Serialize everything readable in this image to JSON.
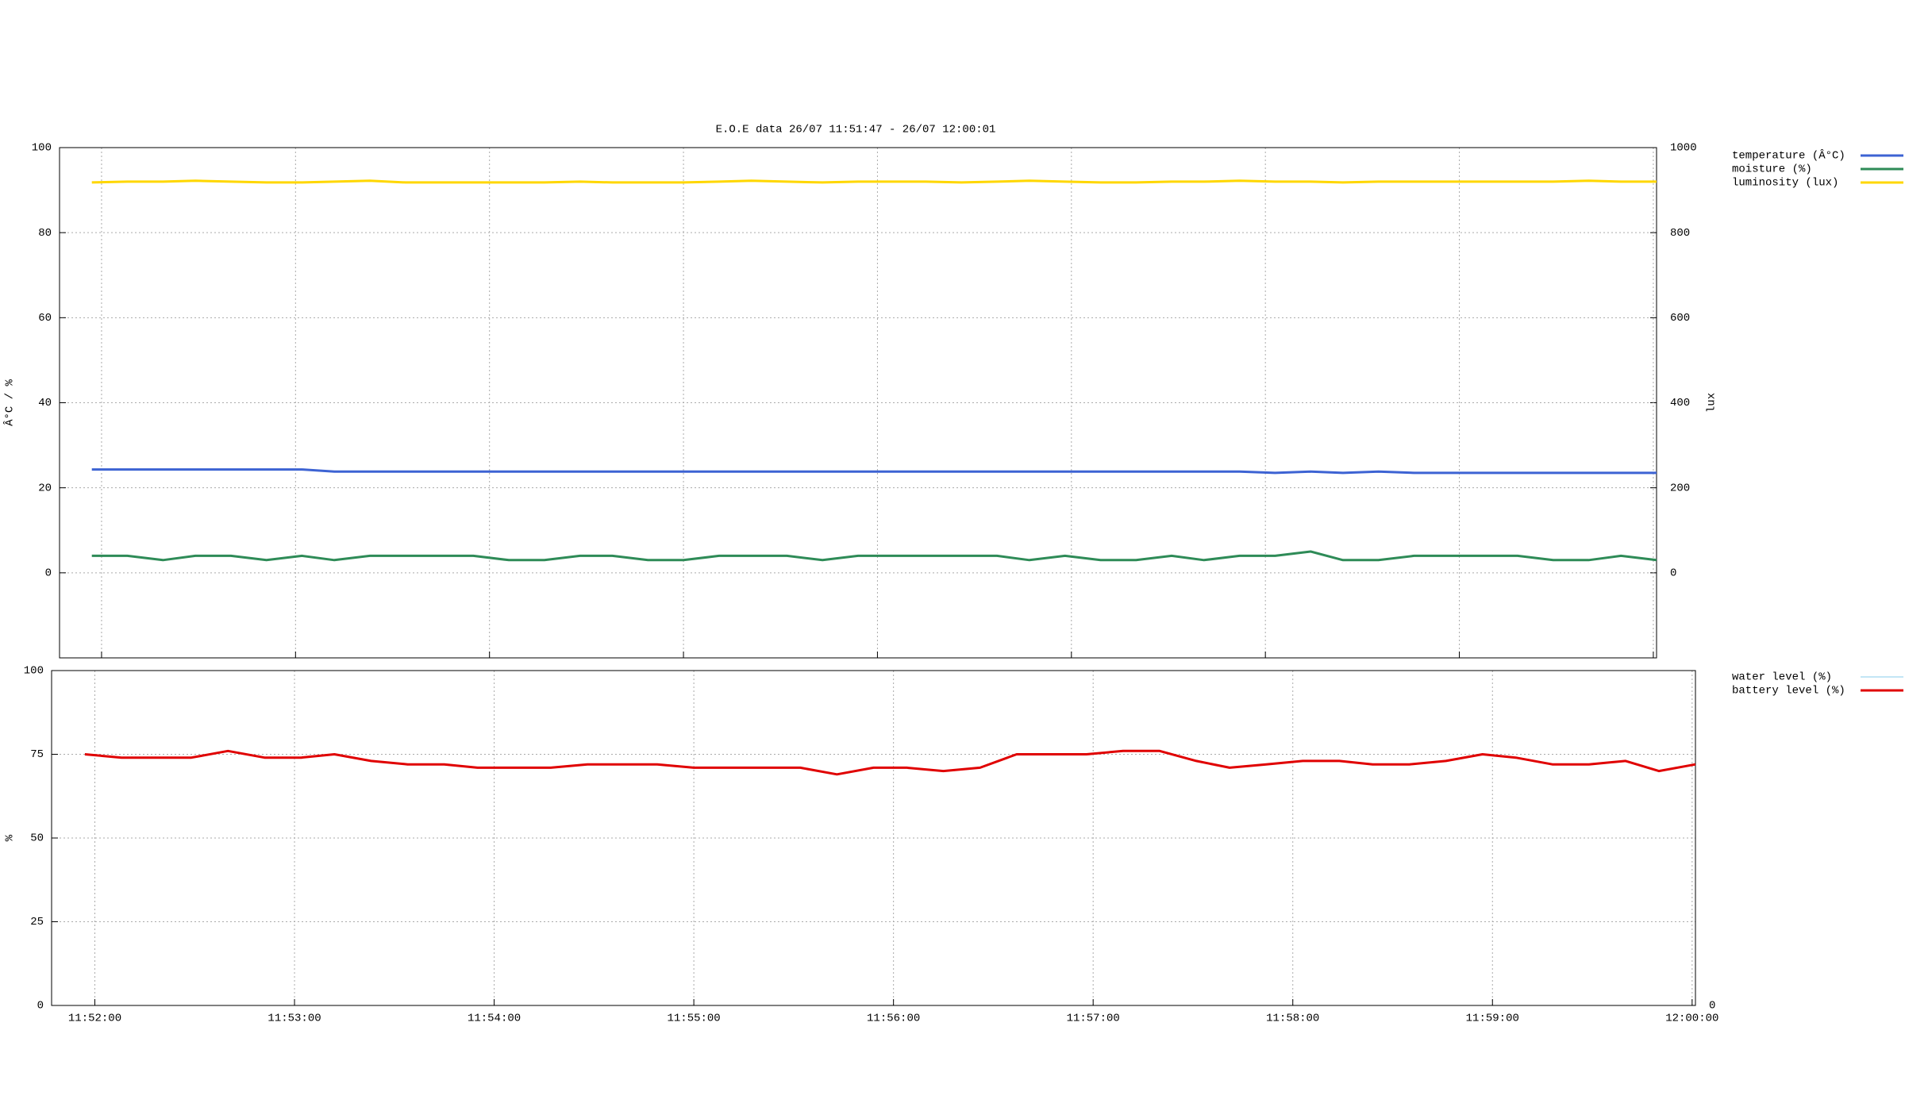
{
  "chart_data": [
    {
      "type": "line",
      "title": "E.O.E data 26/07 11:51:47 - 26/07 12:00:01",
      "ylabel": "Â°C / %",
      "y2label": "lux",
      "grid": true,
      "show_xtick_labels": false,
      "legend": "right",
      "x": [
        "11:51:57",
        "11:52:08",
        "11:52:19",
        "11:52:29",
        "11:52:40",
        "11:52:51",
        "11:53:02",
        "11:53:12",
        "11:53:23",
        "11:53:34",
        "11:53:45",
        "11:53:55",
        "11:54:06",
        "11:54:17",
        "11:54:28",
        "11:54:38",
        "11:54:49",
        "11:55:00",
        "11:55:11",
        "11:55:21",
        "11:55:32",
        "11:55:43",
        "11:55:54",
        "11:56:04",
        "11:56:15",
        "11:56:26",
        "11:56:37",
        "11:56:47",
        "11:56:58",
        "11:57:09",
        "11:57:20",
        "11:57:31",
        "11:57:41",
        "11:57:52",
        "11:58:03",
        "11:58:14",
        "11:58:24",
        "11:58:35",
        "11:58:46",
        "11:58:57",
        "11:59:07",
        "11:59:18",
        "11:59:29",
        "11:59:40",
        "11:59:50",
        "12:00:01"
      ],
      "xlim": [
        "11:51:47",
        "12:00:01"
      ],
      "xticks": [
        "11:52:00",
        "11:53:00",
        "11:54:00",
        "11:55:00",
        "11:56:00",
        "11:57:00",
        "11:58:00",
        "11:59:00",
        "12:00:00"
      ],
      "ylim": [
        -20,
        100
      ],
      "yticks": [
        0,
        20,
        40,
        60,
        80,
        100
      ],
      "y2lim": [
        -200,
        1000
      ],
      "y2ticks": [
        0,
        200,
        400,
        600,
        800,
        1000
      ],
      "series": [
        {
          "name": "temperature (Â°C)",
          "color": "#3d63d3",
          "line_width": 3,
          "values": [
            24.3,
            24.3,
            24.3,
            24.3,
            24.3,
            24.3,
            24.3,
            23.8,
            23.8,
            23.8,
            23.8,
            23.8,
            23.8,
            23.8,
            23.8,
            23.8,
            23.8,
            23.8,
            23.8,
            23.8,
            23.8,
            23.8,
            23.8,
            23.8,
            23.8,
            23.8,
            23.8,
            23.8,
            23.8,
            23.8,
            23.8,
            23.8,
            23.8,
            23.8,
            23.5,
            23.8,
            23.5,
            23.8,
            23.5,
            23.5,
            23.5,
            23.5,
            23.5,
            23.5,
            23.5,
            23.5
          ]
        },
        {
          "name": "moisture (%)",
          "color": "#2e8b57",
          "line_width": 3,
          "values": [
            4,
            4,
            3,
            4,
            4,
            3,
            4,
            3,
            4,
            4,
            4,
            4,
            3,
            3,
            4,
            4,
            3,
            3,
            4,
            4,
            4,
            3,
            4,
            4,
            4,
            4,
            4,
            3,
            4,
            3,
            3,
            4,
            3,
            4,
            4,
            5,
            3,
            3,
            4,
            4,
            4,
            4,
            3,
            3,
            4,
            3
          ]
        },
        {
          "name": "luminosity (lux)",
          "color": "#ffd700",
          "line_width": 3,
          "axis": "y2",
          "values": [
            918,
            920,
            920,
            922,
            920,
            918,
            918,
            920,
            922,
            918,
            918,
            918,
            918,
            918,
            920,
            918,
            918,
            918,
            920,
            922,
            920,
            918,
            920,
            920,
            920,
            918,
            920,
            922,
            920,
            918,
            918,
            920,
            920,
            922,
            920,
            920,
            918,
            920,
            920,
            920,
            920,
            920,
            920,
            922,
            920,
            920
          ]
        }
      ]
    },
    {
      "type": "line",
      "ylabel": "%",
      "grid": true,
      "show_xtick_labels": true,
      "legend": "right",
      "x": [
        "11:51:57",
        "11:52:08",
        "11:52:19",
        "11:52:29",
        "11:52:40",
        "11:52:51",
        "11:53:02",
        "11:53:12",
        "11:53:23",
        "11:53:34",
        "11:53:45",
        "11:53:55",
        "11:54:06",
        "11:54:17",
        "11:54:28",
        "11:54:38",
        "11:54:49",
        "11:55:00",
        "11:55:11",
        "11:55:21",
        "11:55:32",
        "11:55:43",
        "11:55:54",
        "11:56:04",
        "11:56:15",
        "11:56:26",
        "11:56:37",
        "11:56:47",
        "11:56:58",
        "11:57:09",
        "11:57:20",
        "11:57:31",
        "11:57:41",
        "11:57:52",
        "11:58:03",
        "11:58:14",
        "11:58:24",
        "11:58:35",
        "11:58:46",
        "11:58:57",
        "11:59:07",
        "11:59:18",
        "11:59:29",
        "11:59:40",
        "11:59:50",
        "12:00:01"
      ],
      "xlim": [
        "11:51:47",
        "12:00:01"
      ],
      "xticks": [
        "11:52:00",
        "11:53:00",
        "11:54:00",
        "11:55:00",
        "11:56:00",
        "11:57:00",
        "11:58:00",
        "11:59:00",
        "12:00:00"
      ],
      "ylim": [
        0,
        100
      ],
      "yticks": [
        0,
        25,
        50,
        75,
        100
      ],
      "y2ticks": [
        0
      ],
      "series": [
        {
          "name": "water level (%)",
          "color": "#87ceeb",
          "line_width": 1,
          "axis": "y2",
          "values": [
            null,
            null,
            null,
            null,
            null,
            null,
            null,
            null,
            null,
            null,
            null,
            null,
            null,
            null,
            null,
            null,
            null,
            null,
            null,
            null,
            null,
            null,
            null,
            null,
            null,
            null,
            null,
            null,
            null,
            null,
            null,
            null,
            null,
            null,
            null,
            null,
            null,
            null,
            null,
            null,
            null,
            null,
            null,
            null,
            null,
            null
          ]
        },
        {
          "name": "battery level (%)",
          "color": "#e00000",
          "line_width": 3,
          "values": [
            75,
            74,
            74,
            74,
            76,
            74,
            74,
            75,
            73,
            72,
            72,
            71,
            71,
            71,
            72,
            72,
            72,
            71,
            71,
            71,
            71,
            69,
            71,
            71,
            70,
            71,
            75,
            75,
            75,
            76,
            76,
            73,
            71,
            72,
            73,
            73,
            72,
            72,
            73,
            75,
            74,
            72,
            72,
            73,
            70,
            72
          ]
        }
      ]
    }
  ]
}
